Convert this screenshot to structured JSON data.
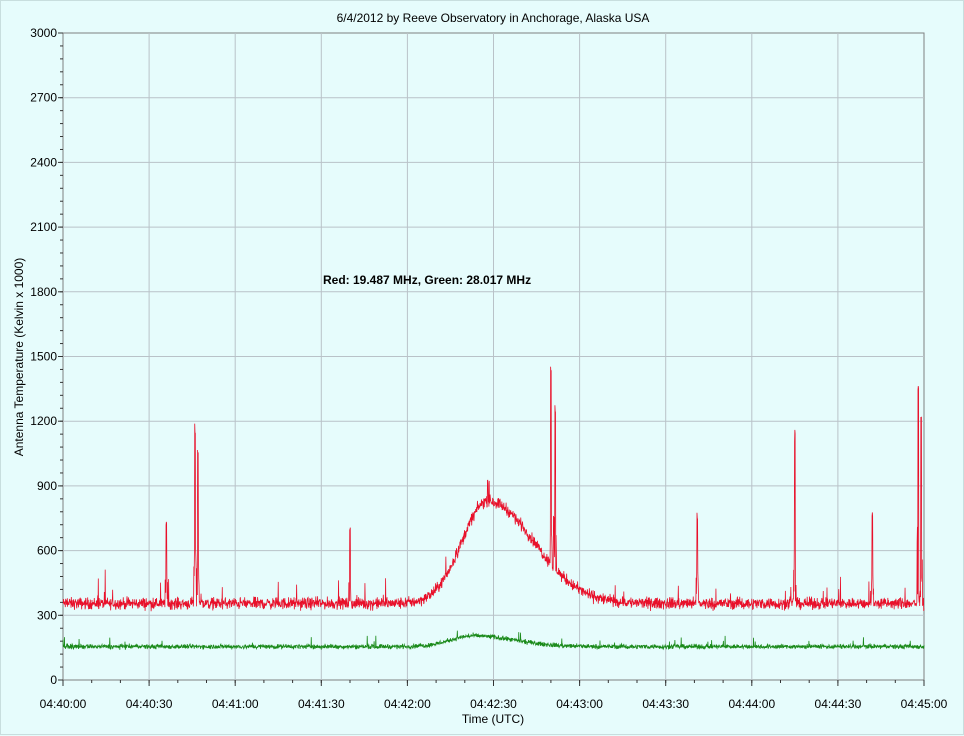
{
  "chart_data": {
    "type": "line",
    "title": "6/4/2012  by  Reeve Observatory  in  Anchorage, Alaska  USA",
    "xlabel": "Time (UTC)",
    "ylabel": "Antenna Temperature (Kelvin x 1000)",
    "annotation": "Red: 19.487 MHz, Green: 28.017 MHz",
    "ylim": [
      0,
      3000
    ],
    "yticks": [
      "0",
      "300",
      "600",
      "900",
      "1200",
      "1500",
      "1800",
      "2100",
      "2400",
      "2700",
      "3000"
    ],
    "xticks": [
      "04:40:00",
      "04:40:30",
      "04:41:00",
      "04:41:30",
      "04:42:00",
      "04:42:30",
      "04:43:00",
      "04:43:30",
      "04:44:00",
      "04:44:30",
      "04:45:00"
    ],
    "xlim_seconds": [
      0,
      300
    ],
    "grid": true,
    "series": [
      {
        "color": "#e8102a",
        "baseline": 355,
        "noise": 25,
        "bump": {
          "center": 148,
          "peak": 830,
          "rise": 9,
          "fall": 16
        },
        "spikes": [
          [
            36,
            760
          ],
          [
            46,
            1190
          ],
          [
            47,
            1080
          ],
          [
            100,
            750
          ],
          [
            148,
            930
          ],
          [
            171,
            800
          ],
          [
            170,
            1470
          ],
          [
            171.5,
            1300
          ],
          [
            221,
            780
          ],
          [
            255,
            1160
          ],
          [
            282,
            810
          ],
          [
            298,
            1380
          ],
          [
            299,
            1250
          ]
        ]
      },
      {
        "color": "#1a8a1a",
        "baseline": 155,
        "noise": 10,
        "bump": {
          "center": 143,
          "peak": 205,
          "rise": 8,
          "fall": 14
        },
        "spikes": []
      }
    ]
  }
}
